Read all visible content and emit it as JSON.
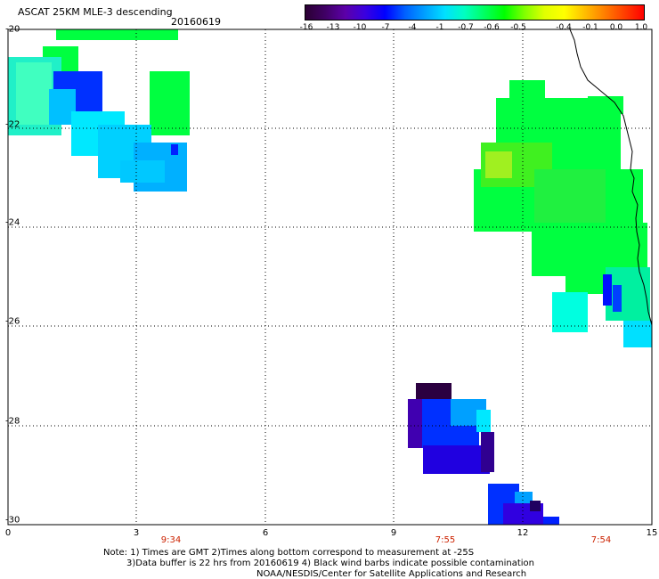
{
  "header": {
    "title": "ASCAT 25KM MLE-3 descending",
    "date": "20160619"
  },
  "colorbar": {
    "tick_labels": [
      "-16",
      "-13",
      "-10",
      "-7",
      "-4",
      "-1",
      "-0.7",
      "-0.6",
      "-0.5",
      "-0.4",
      "-0.1",
      "0.0",
      "1.0"
    ],
    "stops": [
      "#2b0033",
      "#400066",
      "#5c00a8",
      "#3a00e0",
      "#0000ff",
      "#0060ff",
      "#00a0ff",
      "#00e0ff",
      "#00ffc0",
      "#00ff60",
      "#00ff00",
      "#80ff00",
      "#e0ff00",
      "#ffff00",
      "#ffc000",
      "#ff8000",
      "#ff4000",
      "#ff0000"
    ]
  },
  "axes": {
    "x_ticks": [
      "0",
      "3",
      "6",
      "9",
      "12",
      "15"
    ],
    "y_ticks": [
      "-20",
      "-22",
      "-24",
      "-26",
      "-28",
      "-30"
    ],
    "times": [
      "9:34",
      "7:55",
      "7:54"
    ],
    "x_range": [
      0,
      15
    ],
    "y_range": [
      -30,
      -20
    ],
    "grid": "dotted"
  },
  "footer": {
    "note_line1": "Note: 1) Times are GMT 2)Times along bottom correspond to measurement at -25S",
    "note_line2": "3)Data buffer is 22 hrs from 20160619 4) Black wind barbs indicate possible contamination",
    "note_line3": "NOAA/NESDIS/Center for Satellite Applications and Research"
  }
}
